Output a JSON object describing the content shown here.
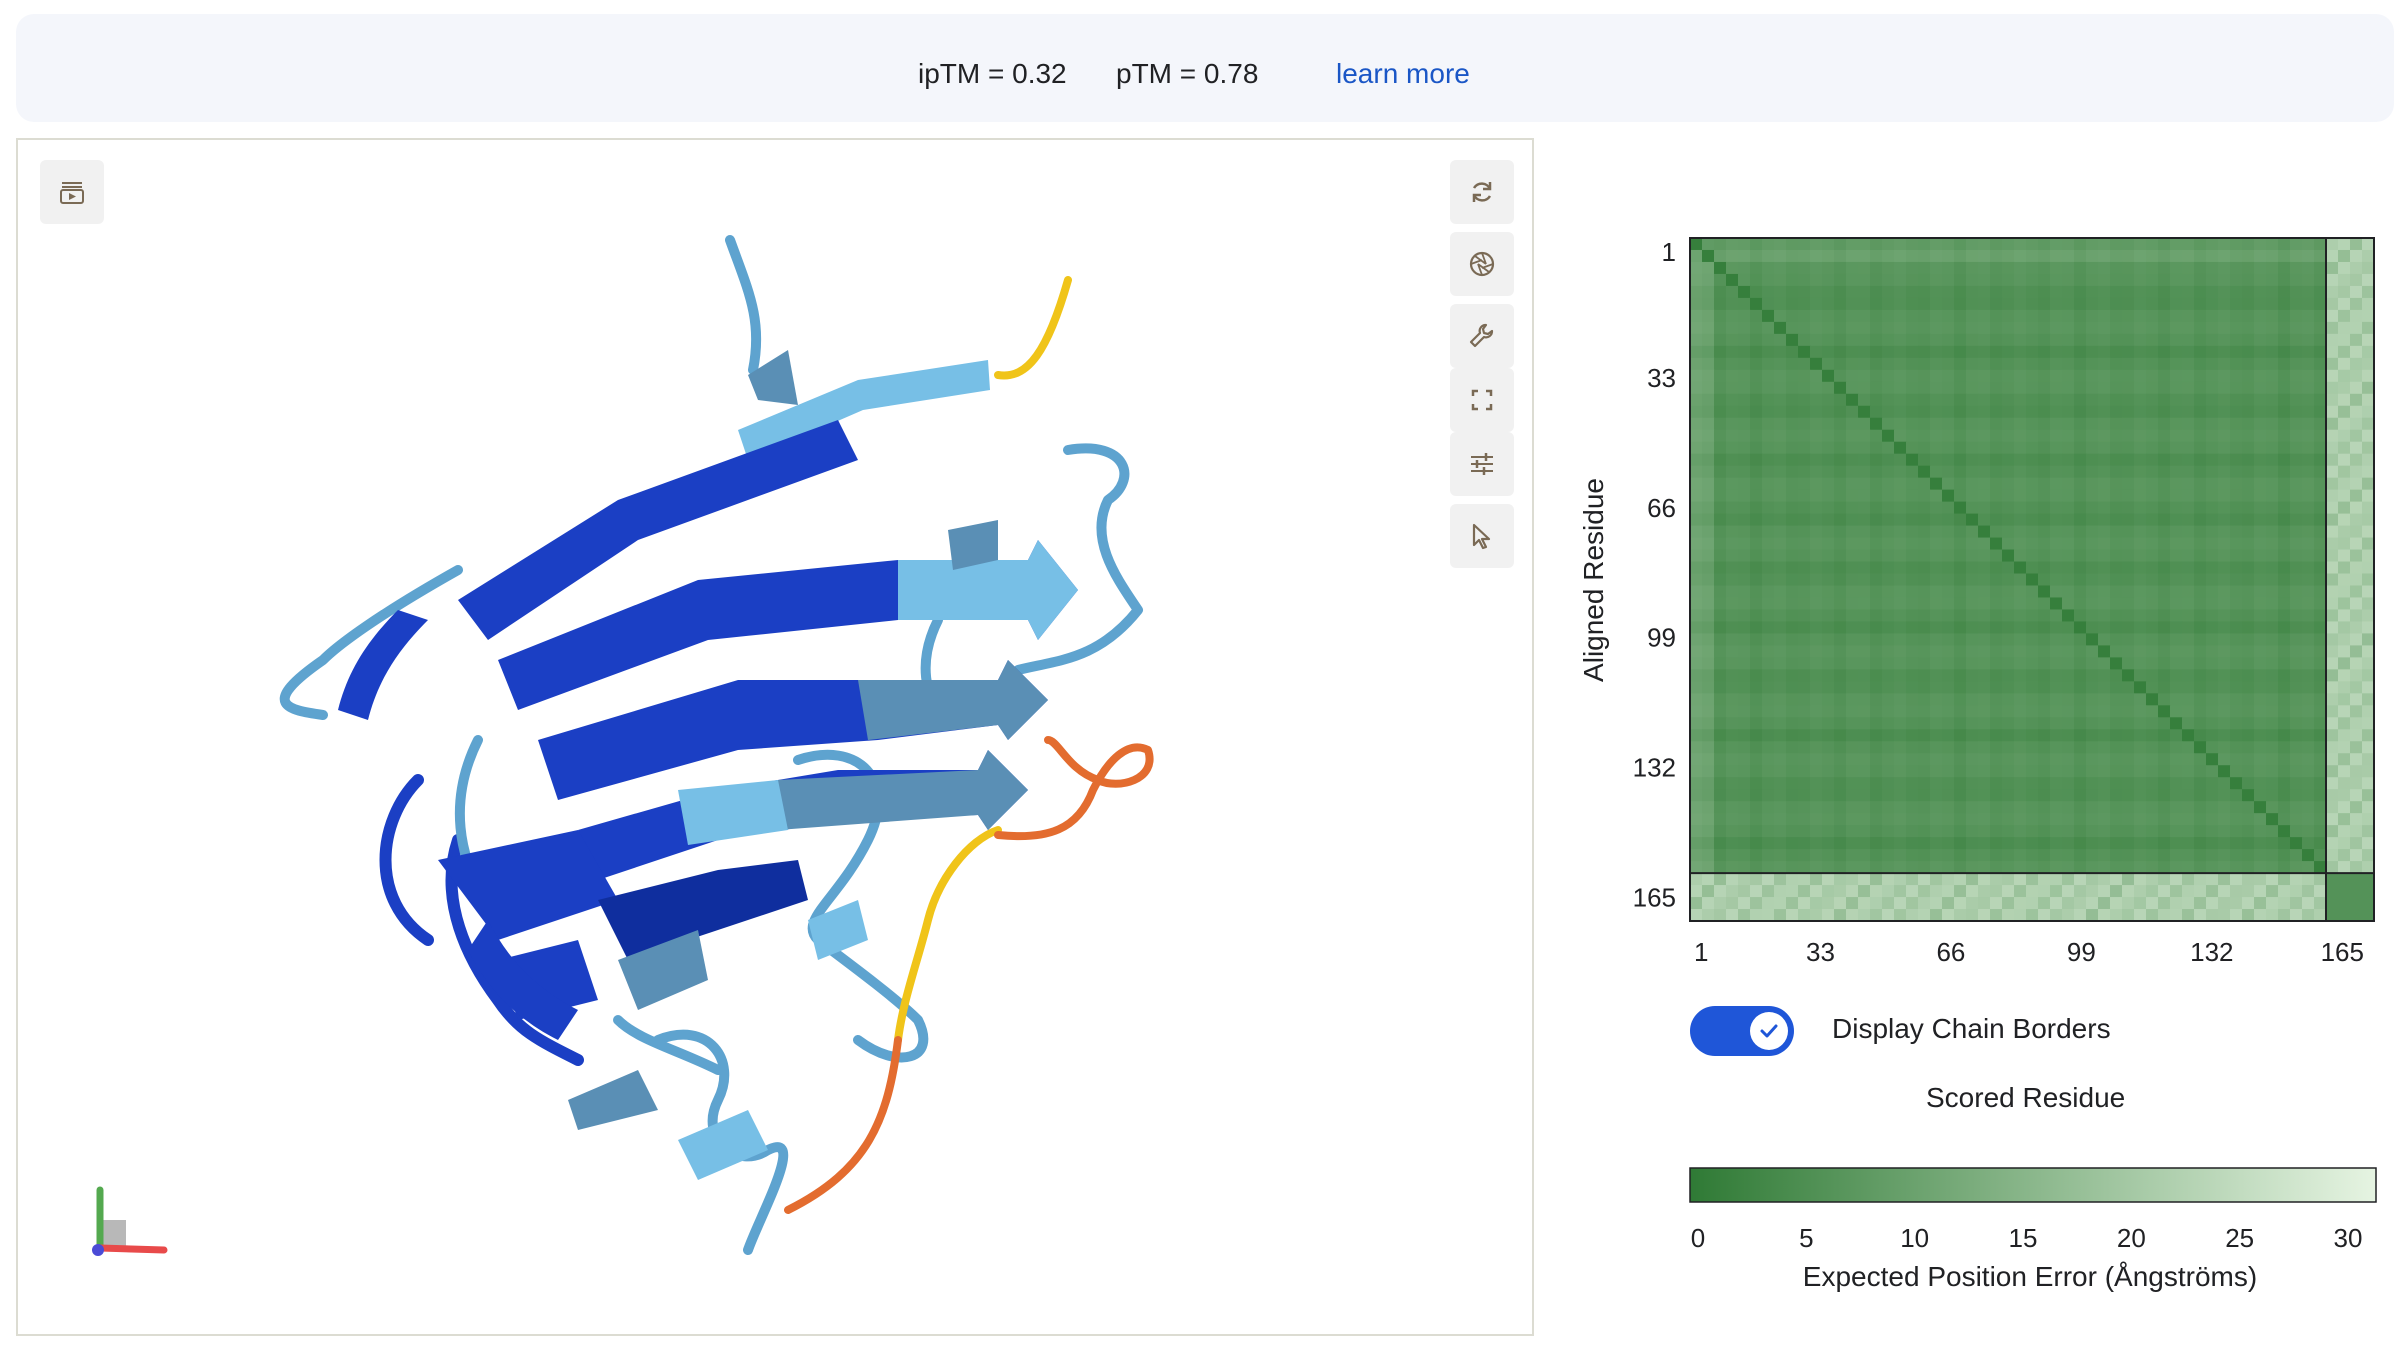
{
  "header": {
    "iptm": "ipTM = 0.32",
    "ptm": "pTM = 0.78",
    "learn_more": "learn more"
  },
  "viewer": {
    "left_tool_icon": "play-sequence-icon",
    "tools": [
      {
        "name": "rotate-icon"
      },
      {
        "name": "camera-aperture-icon"
      },
      {
        "name": "wrench-icon"
      },
      {
        "name": "fullscreen-icon"
      },
      {
        "name": "sliders-icon"
      },
      {
        "name": "pointer-icon"
      }
    ],
    "structure_colors": [
      "#1b3fc4",
      "#0f2e9e",
      "#77bfe6",
      "#5a8fb5",
      "#f0c419",
      "#e36c2f"
    ]
  },
  "pae": {
    "ylabel": "Aligned Residue",
    "xlabel": "Scored Residue",
    "ticks": [
      "1",
      "33",
      "66",
      "99",
      "132",
      "165"
    ],
    "chain_break": 159,
    "n_residues": 171,
    "colors": {
      "low": "#2f7a35",
      "high": "#e6f4e2"
    },
    "toggle_label": "Display Chain Borders",
    "toggle_on": true,
    "colorbar": {
      "title": "Expected Position Error (Ångströms)",
      "ticks": [
        "0",
        "5",
        "10",
        "15",
        "20",
        "25",
        "30"
      ]
    }
  }
}
